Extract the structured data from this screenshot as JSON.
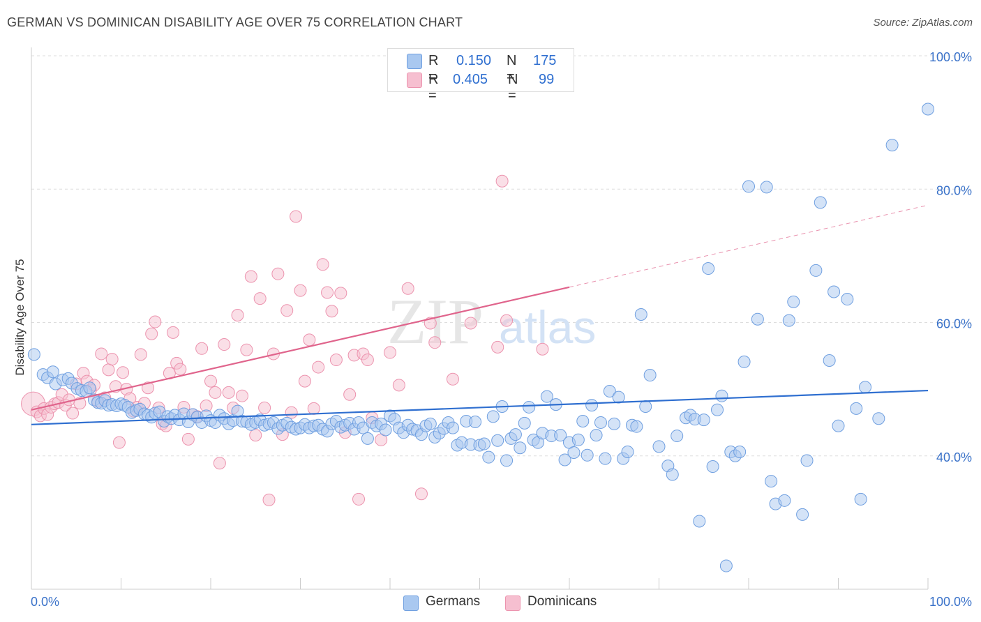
{
  "title": "GERMAN VS DOMINICAN DISABILITY AGE OVER 75 CORRELATION CHART",
  "source": "Source: ZipAtlas.com",
  "watermark": {
    "zip": "ZIP",
    "atlas": "atlas"
  },
  "colors": {
    "german_fill": "#a9c8f0",
    "german_stroke": "#6f9fe0",
    "german_line": "#2f6fd0",
    "dominican_fill": "#f6bfd0",
    "dominican_stroke": "#ec93ae",
    "dominican_line": "#e0648c",
    "axis_text": "#3a72c9",
    "grid": "#dddddd"
  },
  "legend": {
    "german": {
      "r_label": "R =",
      "r_value": "0.150",
      "n_label": "N =",
      "n_value": "175"
    },
    "dominican": {
      "r_label": "R =",
      "r_value": "0.405",
      "n_label": "N =",
      "n_value": "99"
    }
  },
  "bottom_legend": {
    "german": "Germans",
    "dominican": "Dominicans"
  },
  "chart_data": {
    "type": "scatter",
    "title": "GERMAN VS DOMINICAN DISABILITY AGE OVER 75 CORRELATION CHART",
    "xlabel": "",
    "ylabel": "Disability Age Over 75",
    "xlim": [
      0,
      100
    ],
    "ylim": [
      20,
      100
    ],
    "x_tick_labels": [
      "0.0%",
      "100.0%"
    ],
    "y_ticks": [
      40,
      60,
      80,
      100
    ],
    "y_tick_labels": [
      "40.0%",
      "60.0%",
      "80.0%",
      "100.0%"
    ],
    "grid": "horizontal dashed",
    "legend_position": "top-center",
    "series": [
      {
        "name": "Germans",
        "r": 0.15,
        "n": 175,
        "trend": {
          "x": [
            0,
            100
          ],
          "y": [
            44.7,
            49.8
          ]
        },
        "points": [
          [
            0.3,
            55.2
          ],
          [
            1.3,
            52.2
          ],
          [
            1.8,
            51.7
          ],
          [
            2.4,
            52.6
          ],
          [
            2.7,
            50.8
          ],
          [
            3.5,
            51.4
          ],
          [
            4.1,
            51.6
          ],
          [
            4.5,
            50.9
          ],
          [
            5.1,
            50.1
          ],
          [
            5.6,
            49.8
          ],
          [
            6.1,
            49.7
          ],
          [
            6.5,
            50.2
          ],
          [
            7.0,
            48.4
          ],
          [
            7.4,
            48.0
          ],
          [
            7.8,
            47.9
          ],
          [
            8.2,
            48.3
          ],
          [
            8.6,
            47.6
          ],
          [
            9.0,
            47.7
          ],
          [
            9.5,
            47.5
          ],
          [
            10.0,
            47.8
          ],
          [
            10.4,
            47.6
          ],
          [
            10.8,
            47.3
          ],
          [
            11.2,
            46.5
          ],
          [
            11.7,
            46.8
          ],
          [
            12.1,
            47.0
          ],
          [
            12.6,
            46.3
          ],
          [
            13.0,
            46.1
          ],
          [
            13.4,
            45.8
          ],
          [
            13.8,
            46.4
          ],
          [
            14.3,
            46.6
          ],
          [
            14.8,
            45.2
          ],
          [
            15.2,
            45.9
          ],
          [
            15.6,
            45.6
          ],
          [
            16.0,
            46.1
          ],
          [
            16.5,
            45.4
          ],
          [
            17.0,
            46.3
          ],
          [
            17.5,
            45.1
          ],
          [
            18.0,
            46.2
          ],
          [
            18.5,
            45.8
          ],
          [
            19.0,
            45.0
          ],
          [
            19.5,
            46.0
          ],
          [
            20.0,
            45.3
          ],
          [
            20.5,
            45.0
          ],
          [
            21.0,
            46.1
          ],
          [
            21.5,
            45.6
          ],
          [
            22.0,
            44.8
          ],
          [
            22.5,
            45.3
          ],
          [
            23.0,
            46.7
          ],
          [
            23.5,
            45.2
          ],
          [
            24.0,
            45.1
          ],
          [
            24.5,
            44.7
          ],
          [
            25.0,
            45.0
          ],
          [
            25.5,
            45.4
          ],
          [
            26.0,
            44.6
          ],
          [
            26.5,
            44.8
          ],
          [
            27.0,
            45.0
          ],
          [
            27.5,
            44.1
          ],
          [
            28.0,
            44.6
          ],
          [
            28.5,
            44.9
          ],
          [
            29.0,
            44.3
          ],
          [
            29.5,
            44.0
          ],
          [
            30.0,
            44.2
          ],
          [
            30.5,
            44.7
          ],
          [
            31.0,
            44.2
          ],
          [
            31.5,
            44.5
          ],
          [
            32.0,
            44.6
          ],
          [
            32.5,
            44.0
          ],
          [
            33.0,
            43.7
          ],
          [
            33.5,
            44.8
          ],
          [
            34.0,
            45.2
          ],
          [
            34.5,
            44.3
          ],
          [
            35.0,
            44.6
          ],
          [
            35.5,
            44.9
          ],
          [
            36.0,
            44.0
          ],
          [
            36.5,
            45.0
          ],
          [
            37.0,
            44.2
          ],
          [
            37.5,
            42.6
          ],
          [
            38.0,
            45.0
          ],
          [
            38.5,
            44.5
          ],
          [
            39.0,
            44.8
          ],
          [
            39.5,
            43.9
          ],
          [
            40.0,
            46.0
          ],
          [
            40.5,
            45.5
          ],
          [
            41.0,
            44.2
          ],
          [
            41.5,
            43.5
          ],
          [
            42.0,
            44.6
          ],
          [
            42.5,
            44.0
          ],
          [
            43.0,
            43.8
          ],
          [
            43.5,
            43.2
          ],
          [
            44.0,
            44.5
          ],
          [
            44.5,
            44.8
          ],
          [
            45.0,
            42.8
          ],
          [
            45.5,
            43.4
          ],
          [
            46.0,
            44.1
          ],
          [
            46.5,
            45.0
          ],
          [
            47.0,
            44.2
          ],
          [
            47.5,
            41.6
          ],
          [
            48.0,
            42.0
          ],
          [
            48.5,
            45.2
          ],
          [
            49.0,
            41.7
          ],
          [
            49.5,
            45.1
          ],
          [
            50.0,
            41.6
          ],
          [
            50.5,
            41.8
          ],
          [
            51.0,
            39.8
          ],
          [
            51.5,
            45.9
          ],
          [
            52.0,
            42.3
          ],
          [
            52.5,
            47.4
          ],
          [
            53.0,
            39.3
          ],
          [
            53.5,
            42.6
          ],
          [
            54.0,
            43.2
          ],
          [
            54.5,
            41.2
          ],
          [
            55.0,
            44.9
          ],
          [
            55.5,
            47.3
          ],
          [
            56.0,
            42.4
          ],
          [
            56.5,
            42.0
          ],
          [
            57.0,
            43.4
          ],
          [
            57.5,
            48.9
          ],
          [
            58.0,
            43.0
          ],
          [
            58.5,
            47.7
          ],
          [
            59.0,
            43.1
          ],
          [
            59.5,
            39.4
          ],
          [
            60.0,
            42.0
          ],
          [
            60.5,
            40.5
          ],
          [
            61.0,
            42.4
          ],
          [
            61.5,
            45.2
          ],
          [
            62.0,
            40.1
          ],
          [
            62.5,
            47.6
          ],
          [
            63.0,
            43.1
          ],
          [
            63.5,
            45.0
          ],
          [
            64.0,
            39.6
          ],
          [
            64.5,
            49.7
          ],
          [
            65.0,
            44.8
          ],
          [
            65.5,
            48.8
          ],
          [
            66.0,
            39.6
          ],
          [
            66.5,
            40.6
          ],
          [
            67.0,
            44.6
          ],
          [
            67.5,
            44.4
          ],
          [
            68.0,
            61.2
          ],
          [
            68.5,
            47.4
          ],
          [
            69.0,
            52.1
          ],
          [
            70.0,
            41.4
          ],
          [
            71.0,
            38.5
          ],
          [
            71.5,
            37.2
          ],
          [
            72.0,
            43.0
          ],
          [
            73.0,
            45.7
          ],
          [
            73.5,
            46.1
          ],
          [
            74.0,
            45.5
          ],
          [
            74.5,
            30.2
          ],
          [
            75.0,
            45.4
          ],
          [
            76.0,
            38.4
          ],
          [
            76.5,
            46.9
          ],
          [
            77.0,
            49.0
          ],
          [
            77.5,
            23.5
          ],
          [
            78.0,
            40.6
          ],
          [
            78.5,
            40.0
          ],
          [
            79.0,
            40.6
          ],
          [
            80.0,
            80.4
          ],
          [
            81.0,
            60.5
          ],
          [
            82.0,
            80.3
          ],
          [
            82.5,
            36.2
          ],
          [
            83.0,
            32.8
          ],
          [
            84.0,
            33.3
          ],
          [
            85.0,
            63.1
          ],
          [
            86.0,
            31.2
          ],
          [
            86.5,
            39.3
          ],
          [
            87.5,
            67.8
          ],
          [
            88.0,
            78.0
          ],
          [
            89.0,
            54.3
          ],
          [
            89.5,
            64.6
          ],
          [
            90.0,
            44.5
          ],
          [
            91.0,
            63.5
          ],
          [
            92.0,
            47.1
          ],
          [
            92.5,
            33.5
          ],
          [
            93.0,
            50.3
          ],
          [
            94.5,
            45.6
          ],
          [
            96.0,
            86.6
          ],
          [
            100.0,
            92.0
          ],
          [
            75.5,
            68.1
          ],
          [
            79.5,
            54.1
          ],
          [
            84.5,
            60.3
          ]
        ]
      },
      {
        "name": "Dominicans",
        "r": 0.405,
        "n": 99,
        "trend": {
          "x": [
            0,
            60
          ],
          "y": [
            46.9,
            65.3
          ]
        },
        "trend_extension": {
          "x": [
            60,
            100
          ],
          "y": [
            65.3,
            77.6
          ]
        },
        "points": [
          [
            0.2,
            47.8
          ],
          [
            0.6,
            46.6
          ],
          [
            1.0,
            46.0
          ],
          [
            1.4,
            47.1
          ],
          [
            1.8,
            46.2
          ],
          [
            2.2,
            47.3
          ],
          [
            2.6,
            47.8
          ],
          [
            3.0,
            48.0
          ],
          [
            3.4,
            49.2
          ],
          [
            3.8,
            47.6
          ],
          [
            4.2,
            48.4
          ],
          [
            4.6,
            46.4
          ],
          [
            5.0,
            50.8
          ],
          [
            5.4,
            47.9
          ],
          [
            5.8,
            52.4
          ],
          [
            6.2,
            51.2
          ],
          [
            6.6,
            49.9
          ],
          [
            7.0,
            50.6
          ],
          [
            7.4,
            48.2
          ],
          [
            7.8,
            55.3
          ],
          [
            8.2,
            48.7
          ],
          [
            8.6,
            52.9
          ],
          [
            9.0,
            54.5
          ],
          [
            9.4,
            50.4
          ],
          [
            9.8,
            42.0
          ],
          [
            10.2,
            52.5
          ],
          [
            10.6,
            50.0
          ],
          [
            11.0,
            48.6
          ],
          [
            11.4,
            46.7
          ],
          [
            11.8,
            47.3
          ],
          [
            12.2,
            55.2
          ],
          [
            12.6,
            47.9
          ],
          [
            13.0,
            50.2
          ],
          [
            13.4,
            58.3
          ],
          [
            13.8,
            60.1
          ],
          [
            14.2,
            47.2
          ],
          [
            14.6,
            44.8
          ],
          [
            15.0,
            44.5
          ],
          [
            15.4,
            52.4
          ],
          [
            15.8,
            58.5
          ],
          [
            16.2,
            53.9
          ],
          [
            16.6,
            53.0
          ],
          [
            17.0,
            47.3
          ],
          [
            17.5,
            42.5
          ],
          [
            18.0,
            46.2
          ],
          [
            18.5,
            45.9
          ],
          [
            19.0,
            56.1
          ],
          [
            19.5,
            47.5
          ],
          [
            20.0,
            51.2
          ],
          [
            20.5,
            49.5
          ],
          [
            21.0,
            38.9
          ],
          [
            21.5,
            56.7
          ],
          [
            22.0,
            49.5
          ],
          [
            22.5,
            47.2
          ],
          [
            23.0,
            61.1
          ],
          [
            23.5,
            49.0
          ],
          [
            24.0,
            55.9
          ],
          [
            24.5,
            66.9
          ],
          [
            25.0,
            43.1
          ],
          [
            25.5,
            63.6
          ],
          [
            26.0,
            47.2
          ],
          [
            26.5,
            33.4
          ],
          [
            27.0,
            55.3
          ],
          [
            27.5,
            67.3
          ],
          [
            28.0,
            43.2
          ],
          [
            28.5,
            61.8
          ],
          [
            29.0,
            46.5
          ],
          [
            29.5,
            75.9
          ],
          [
            30.0,
            64.8
          ],
          [
            30.5,
            51.2
          ],
          [
            31.0,
            57.4
          ],
          [
            31.5,
            47.1
          ],
          [
            32.0,
            53.3
          ],
          [
            32.5,
            68.7
          ],
          [
            33.0,
            64.5
          ],
          [
            33.5,
            61.7
          ],
          [
            34.0,
            54.4
          ],
          [
            34.5,
            64.4
          ],
          [
            35.0,
            43.5
          ],
          [
            35.5,
            49.2
          ],
          [
            36.0,
            55.1
          ],
          [
            36.5,
            33.5
          ],
          [
            37.0,
            55.3
          ],
          [
            37.5,
            54.4
          ],
          [
            38.0,
            45.7
          ],
          [
            39.0,
            42.4
          ],
          [
            40.0,
            55.5
          ],
          [
            40.5,
            100.0
          ],
          [
            41.0,
            50.6
          ],
          [
            42.0,
            65.1
          ],
          [
            43.5,
            34.3
          ],
          [
            44.5,
            59.9
          ],
          [
            45.0,
            57.0
          ],
          [
            47.0,
            51.5
          ],
          [
            49.0,
            59.9
          ],
          [
            52.0,
            56.3
          ],
          [
            52.5,
            81.2
          ],
          [
            53.0,
            60.3
          ],
          [
            57.0,
            56.0
          ]
        ]
      }
    ]
  }
}
